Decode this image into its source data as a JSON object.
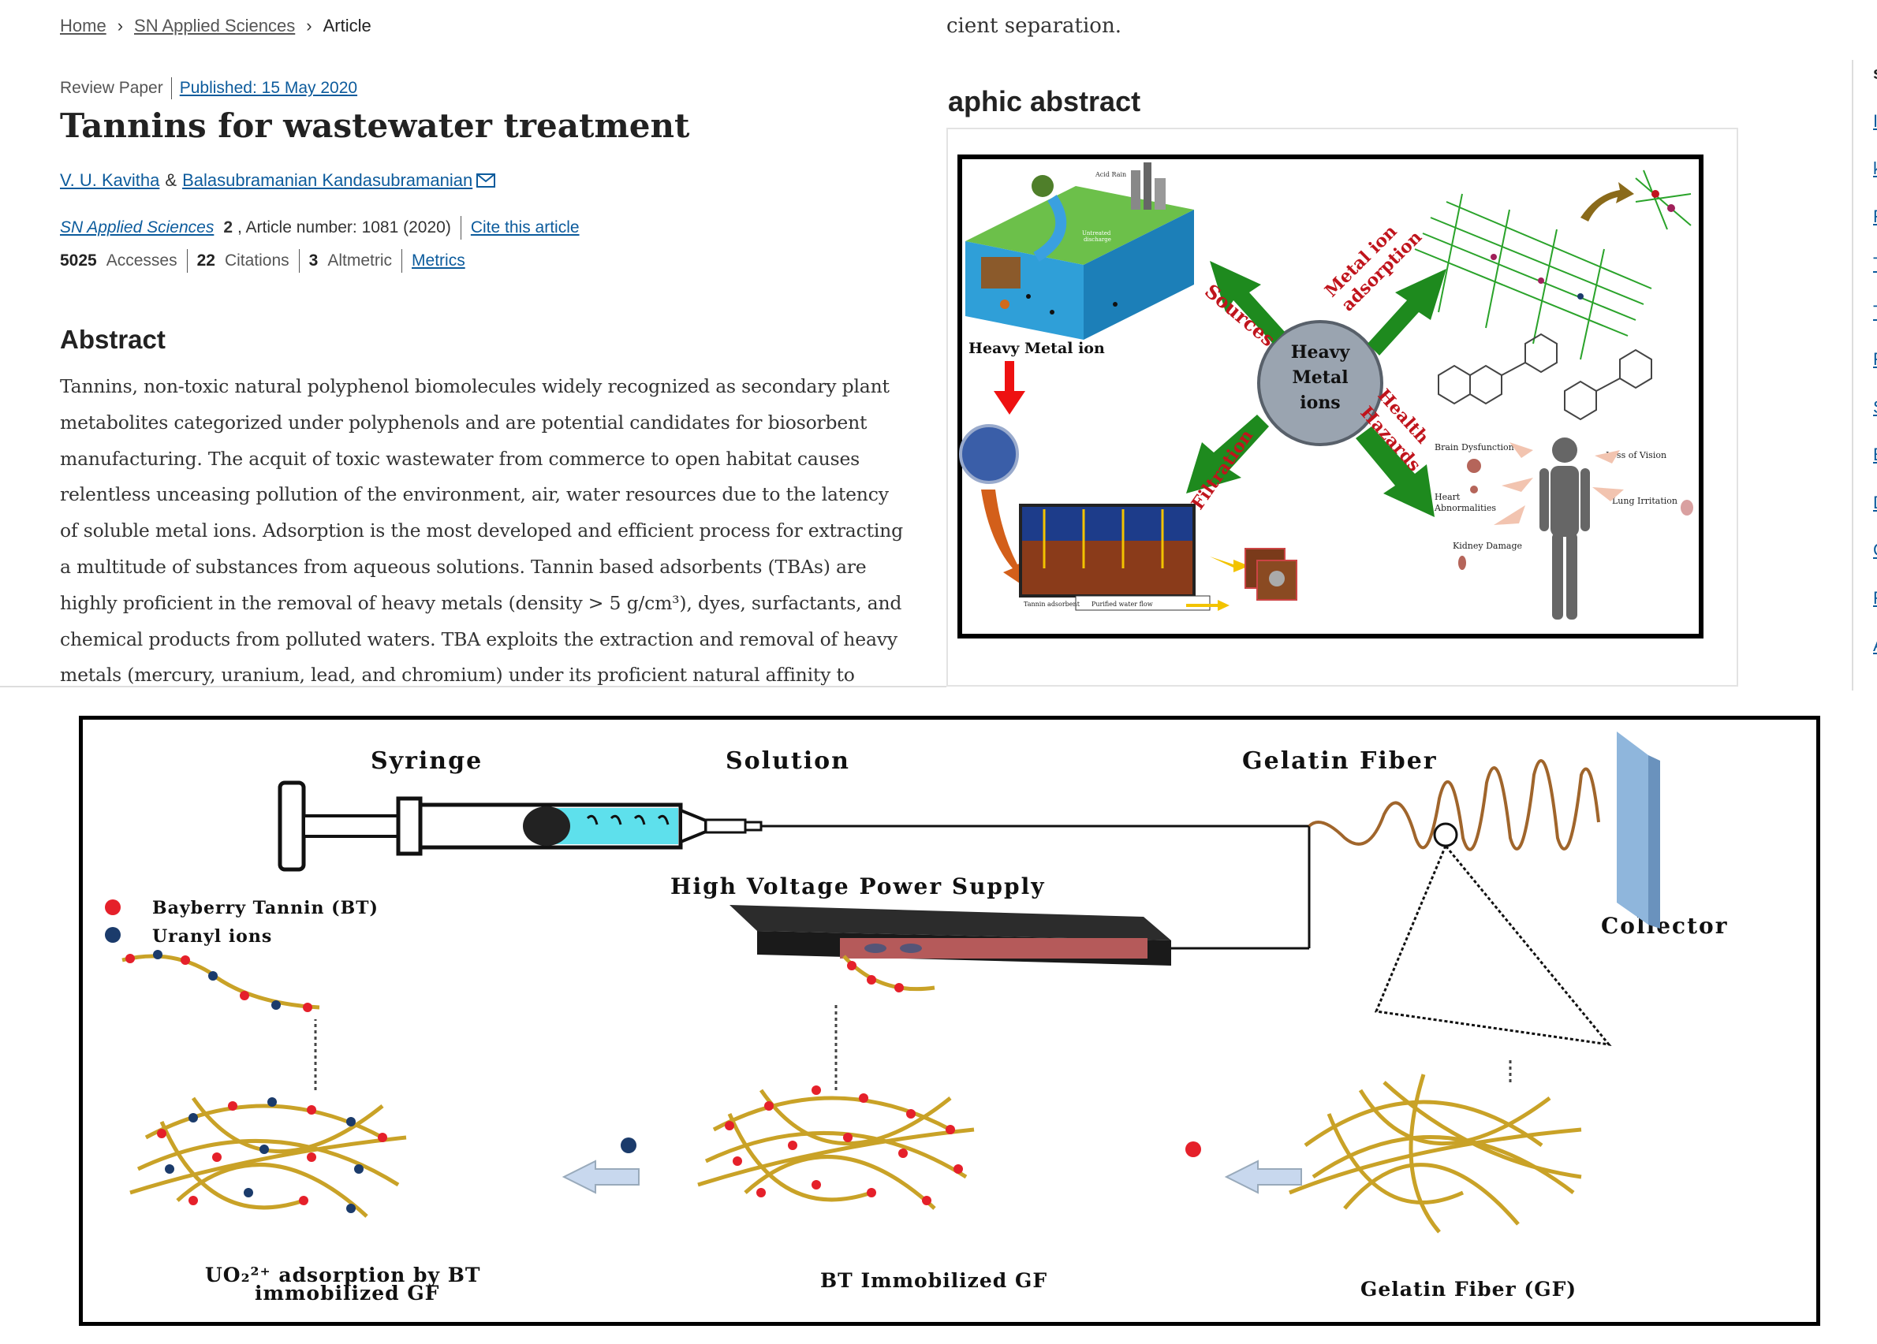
{
  "breadcrumb": {
    "items": [
      "Home",
      "SN Applied Sciences",
      "Article"
    ]
  },
  "article": {
    "type": "Review Paper",
    "published": "Published: 15 May 2020",
    "title": "Tannins for wastewater treatment",
    "authors": [
      "V. U. Kavitha",
      "&",
      "Balasubramanian Kandasubramanian"
    ],
    "journal": "SN Applied Sciences",
    "volume": "2",
    "article_number": ", Article number: 1081 (2020)",
    "cite": "Cite this article",
    "metrics": [
      {
        "value": "5025",
        "label": "Accesses"
      },
      {
        "value": "22",
        "label": "Citations"
      },
      {
        "value": "3",
        "label": "Altmetric"
      }
    ],
    "metrics_link": "Metrics",
    "abstract_heading": "Abstract",
    "abstract_text": "Tannins, non-toxic natural polyphenol biomolecules widely recognized as secondary plant metabolites categorized under polyphenols and are potential candidates for biosorbent manufacturing. The acquit of toxic wastewater from commerce to open habitat causes relentless unceasing pollution of the environment, air, water resources due to the latency of soluble metal ions. Adsorption is the most developed and efficient process for extracting a multitude of substances from aqueous solutions. Tannin based adsorbents (TBAs) are highly proficient in the removal of heavy metals (density > 5 g/cm³), dyes, surfactants, and chemical products from polluted waters. TBA exploits the extraction and removal of heavy metals (mercury, uranium, lead, and chromium) under its proficient natural affinity to uptake heavy"
  },
  "graphical_abstract": {
    "cut_text": "cient separation.",
    "heading": "aphic abstract",
    "labels": {
      "heavy_metal_ion": "Heavy Metal ion",
      "center": [
        "Heavy",
        "Metal",
        "ions"
      ],
      "sources": "Sources",
      "metal_ion_adsorption": [
        "Metal ion",
        "adsorption"
      ],
      "health_hazards": [
        "Health",
        "Hazards"
      ],
      "filtration": "Filtration",
      "brain": "Brain Dysfunction",
      "heart": [
        "Heart",
        "Abnormalities"
      ],
      "kidney": "Kidney Damage",
      "vision": "Loss of Vision",
      "lung": "Lung Irritation",
      "tannin_adsorbent": "Tannin adsorbent",
      "purified": "Purified water flow",
      "acid_rain": "Acid Rain",
      "discharge": [
        "Untreated",
        "discharge"
      ]
    },
    "side_letters": [
      "s",
      "I",
      "k",
      "F",
      "T",
      "T",
      "F",
      "S",
      "E",
      "D",
      "C",
      "F",
      "A"
    ]
  },
  "figure2": {
    "labels": {
      "syringe": "Syringe",
      "solution": "Solution",
      "gelatin_fiber": "Gelatin Fiber",
      "hv": "High Voltage Power Supply",
      "collector": "Collector",
      "legend_bt": "Bayberry Tannin (BT)",
      "legend_u": "Uranyl ions",
      "cap1": [
        "UO₂²⁺ adsorption by BT",
        "immobilized GF"
      ],
      "cap2": "BT Immobilized GF",
      "cap3": "Gelatin Fiber (GF)"
    },
    "colors": {
      "tannin": "#e5202a",
      "uranyl": "#1b3b6b",
      "fiber": "#c9a227"
    }
  }
}
